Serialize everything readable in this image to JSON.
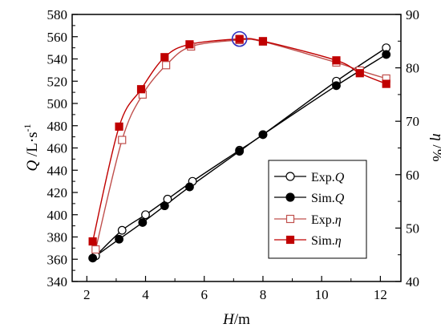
{
  "chart_data": {
    "type": "line",
    "xlabel": {
      "var": "H",
      "unit": "/m"
    },
    "ylabel_left": {
      "var": "Q",
      "unit": " /L·s",
      "sup": "-1"
    },
    "ylabel_right": {
      "var": "η",
      "unit": " /%"
    },
    "xlim": [
      1.5,
      12.7
    ],
    "ylim_left": [
      340,
      580
    ],
    "ylim_right": [
      40,
      90
    ],
    "x_ticks": [
      "2",
      "4",
      "6",
      "8",
      "10",
      "12"
    ],
    "y_left_ticks": [
      "340",
      "360",
      "380",
      "400",
      "420",
      "440",
      "460",
      "480",
      "500",
      "520",
      "540",
      "560",
      "580"
    ],
    "y_right_ticks": [
      "40",
      "50",
      "60",
      "70",
      "80",
      "90"
    ],
    "legend_position": "right-middle",
    "series": [
      {
        "name": "Exp.Q",
        "name_prefix": "Exp.",
        "name_var": "Q",
        "axis": "left",
        "marker": "circle-open",
        "color": "#000000",
        "x": [
          2.3,
          3.2,
          4.0,
          4.75,
          5.6,
          7.2,
          8.0,
          10.5,
          12.2
        ],
        "y": [
          363,
          386,
          400,
          414,
          430,
          458,
          472,
          520,
          550
        ]
      },
      {
        "name": "Sim.Q",
        "name_prefix": "Sim.",
        "name_var": "Q",
        "axis": "left",
        "marker": "circle-filled",
        "color": "#000000",
        "x": [
          2.2,
          3.1,
          3.9,
          4.65,
          5.5,
          7.2,
          8.0,
          10.5,
          12.2
        ],
        "y": [
          361,
          378,
          393,
          408,
          425,
          457,
          472,
          516,
          544
        ]
      },
      {
        "name": "Exp.η",
        "name_prefix": "Exp.",
        "name_var": "η",
        "axis": "right",
        "marker": "square-open",
        "color": "#c0504d",
        "x": [
          2.3,
          3.2,
          3.9,
          4.7,
          5.55,
          7.2,
          8.0,
          10.5,
          11.3,
          12.2
        ],
        "y": [
          46.0,
          66.5,
          75.0,
          80.5,
          84.0,
          85.2,
          84.9,
          81.0,
          79.5,
          78.0
        ]
      },
      {
        "name": "Sim.η",
        "name_prefix": "Sim.",
        "name_var": "η",
        "axis": "right",
        "marker": "square-filled",
        "color": "#c00000",
        "x": [
          2.2,
          3.1,
          3.85,
          4.65,
          5.5,
          7.2,
          8.0,
          10.5,
          11.3,
          12.2
        ],
        "y": [
          47.5,
          69.0,
          76.0,
          82.0,
          84.4,
          85.4,
          85.0,
          81.4,
          79.0,
          77.0
        ]
      }
    ],
    "highlight": {
      "x": 7.2,
      "y_right": 85.4,
      "shape": "circle",
      "color": "#3030c0"
    }
  }
}
